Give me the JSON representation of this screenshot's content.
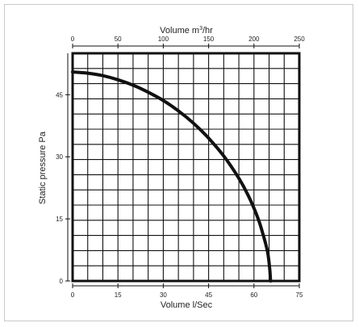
{
  "chart_data": {
    "type": "line",
    "xlabel": "Volume l/Sec",
    "x2label_main": "Volume m",
    "x2label_sup": "3",
    "x2label_end": "/hr",
    "ylabel": "Static pressure Pa",
    "xlim": [
      0,
      75
    ],
    "x2lim": [
      0,
      250
    ],
    "ylim": [
      0,
      55
    ],
    "xticks": [
      "0",
      "15",
      "30",
      "45",
      "60",
      "75"
    ],
    "x2ticks": [
      "0",
      "50",
      "100",
      "150",
      "200",
      "250"
    ],
    "yticks": [
      "0",
      "15",
      "30",
      "45"
    ],
    "grid": true,
    "series": [
      {
        "x": [
          0,
          5,
          10,
          15,
          20,
          25,
          30,
          35,
          40,
          45,
          50,
          55,
          58,
          61,
          63,
          64.5,
          65.2,
          65.5
        ],
        "y": [
          50.5,
          50.2,
          49.6,
          48.6,
          47.3,
          45.6,
          43.6,
          41.1,
          38.1,
          34.5,
          30.2,
          24.8,
          20.8,
          15.8,
          11.3,
          7.0,
          3.0,
          0
        ]
      }
    ]
  }
}
